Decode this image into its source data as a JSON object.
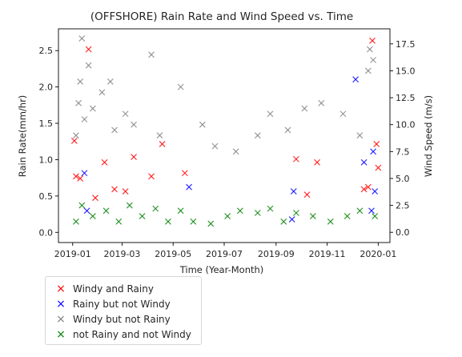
{
  "chart_data": {
    "type": "scatter",
    "title": "(OFFSHORE) Rain Rate and Wind Speed vs. Time",
    "xlabel": "Time (Year-Month)",
    "ylabel": "Rain Rate(mm/hr)",
    "y2label": "Wind Speed (m/s)",
    "xlim": [
      "2018-12-15",
      "2020-01-15"
    ],
    "ylim": [
      -0.14,
      2.8
    ],
    "y2lim": [
      -0.95,
      18.9
    ],
    "x_ticks": [
      "2019-01",
      "2019-03",
      "2019-05",
      "2019-07",
      "2019-09",
      "2019-11",
      "2020-01"
    ],
    "y_ticks": [
      "0.0",
      "0.5",
      "1.0",
      "1.5",
      "2.0",
      "2.5"
    ],
    "y2_ticks": [
      "0.0",
      "2.5",
      "5.0",
      "7.5",
      "10.0",
      "12.5",
      "15.0",
      "17.5"
    ],
    "grid": false,
    "legend_placement": "below-left",
    "series": [
      {
        "name": "Windy and Rainy",
        "color": "#ff0000",
        "axis": "right",
        "points": [
          [
            "2019-01-03",
            8.5
          ],
          [
            "2019-01-05",
            5.2
          ],
          [
            "2019-01-10",
            5.0
          ],
          [
            "2019-01-20",
            17.0
          ],
          [
            "2019-01-28",
            3.2
          ],
          [
            "2019-02-08",
            6.5
          ],
          [
            "2019-02-20",
            4.0
          ],
          [
            "2019-03-05",
            3.8
          ],
          [
            "2019-03-15",
            7.0
          ],
          [
            "2019-04-05",
            5.2
          ],
          [
            "2019-04-18",
            8.2
          ],
          [
            "2019-05-15",
            5.5
          ],
          [
            "2019-09-25",
            6.8
          ],
          [
            "2019-10-08",
            3.5
          ],
          [
            "2019-10-20",
            6.5
          ],
          [
            "2019-12-15",
            4.0
          ],
          [
            "2019-12-20",
            4.2
          ],
          [
            "2019-12-25",
            17.8
          ],
          [
            "2019-12-30",
            8.2
          ],
          [
            "2020-01-01",
            6.0
          ]
        ]
      },
      {
        "name": "Rainy but not Windy",
        "color": "#0000ff",
        "axis": "right",
        "points": [
          [
            "2019-01-15",
            5.5
          ],
          [
            "2019-01-18",
            2.0
          ],
          [
            "2019-05-20",
            4.2
          ],
          [
            "2019-09-20",
            1.2
          ],
          [
            "2019-09-22",
            3.8
          ],
          [
            "2019-12-05",
            14.2
          ],
          [
            "2019-12-15",
            6.5
          ],
          [
            "2019-12-24",
            2.0
          ],
          [
            "2019-12-26",
            7.5
          ],
          [
            "2019-12-28",
            3.8
          ]
        ]
      },
      {
        "name": "Windy but not Rainy",
        "color": "#808080",
        "axis": "right",
        "points": [
          [
            "2019-01-05",
            9.0
          ],
          [
            "2019-01-08",
            12.0
          ],
          [
            "2019-01-10",
            14.0
          ],
          [
            "2019-01-12",
            18.0
          ],
          [
            "2019-01-15",
            10.5
          ],
          [
            "2019-01-20",
            15.5
          ],
          [
            "2019-01-25",
            11.5
          ],
          [
            "2019-02-05",
            13.0
          ],
          [
            "2019-02-15",
            14.0
          ],
          [
            "2019-02-20",
            9.5
          ],
          [
            "2019-03-05",
            11.0
          ],
          [
            "2019-03-15",
            10.0
          ],
          [
            "2019-04-05",
            16.5
          ],
          [
            "2019-04-15",
            9.0
          ],
          [
            "2019-05-10",
            13.5
          ],
          [
            "2019-06-05",
            10.0
          ],
          [
            "2019-06-20",
            8.0
          ],
          [
            "2019-07-15",
            7.5
          ],
          [
            "2019-08-10",
            9.0
          ],
          [
            "2019-08-25",
            11.0
          ],
          [
            "2019-09-15",
            9.5
          ],
          [
            "2019-10-05",
            11.5
          ],
          [
            "2019-10-25",
            12.0
          ],
          [
            "2019-11-20",
            11.0
          ],
          [
            "2019-12-10",
            9.0
          ],
          [
            "2019-12-20",
            15.0
          ],
          [
            "2019-12-22",
            17.0
          ],
          [
            "2019-12-26",
            16.0
          ]
        ]
      },
      {
        "name": "not Rainy and not Windy",
        "color": "#008000",
        "axis": "right",
        "points": [
          [
            "2019-01-05",
            1.0
          ],
          [
            "2019-01-12",
            2.5
          ],
          [
            "2019-01-25",
            1.5
          ],
          [
            "2019-02-10",
            2.0
          ],
          [
            "2019-02-25",
            1.0
          ],
          [
            "2019-03-10",
            2.5
          ],
          [
            "2019-03-25",
            1.5
          ],
          [
            "2019-04-10",
            2.2
          ],
          [
            "2019-04-25",
            1.0
          ],
          [
            "2019-05-10",
            2.0
          ],
          [
            "2019-05-25",
            1.0
          ],
          [
            "2019-06-15",
            0.8
          ],
          [
            "2019-07-05",
            1.5
          ],
          [
            "2019-07-20",
            2.0
          ],
          [
            "2019-08-10",
            1.8
          ],
          [
            "2019-08-25",
            2.2
          ],
          [
            "2019-09-10",
            1.0
          ],
          [
            "2019-09-25",
            1.8
          ],
          [
            "2019-10-15",
            1.5
          ],
          [
            "2019-11-05",
            1.0
          ],
          [
            "2019-11-25",
            1.5
          ],
          [
            "2019-12-10",
            2.0
          ],
          [
            "2019-12-28",
            1.5
          ]
        ]
      }
    ]
  }
}
